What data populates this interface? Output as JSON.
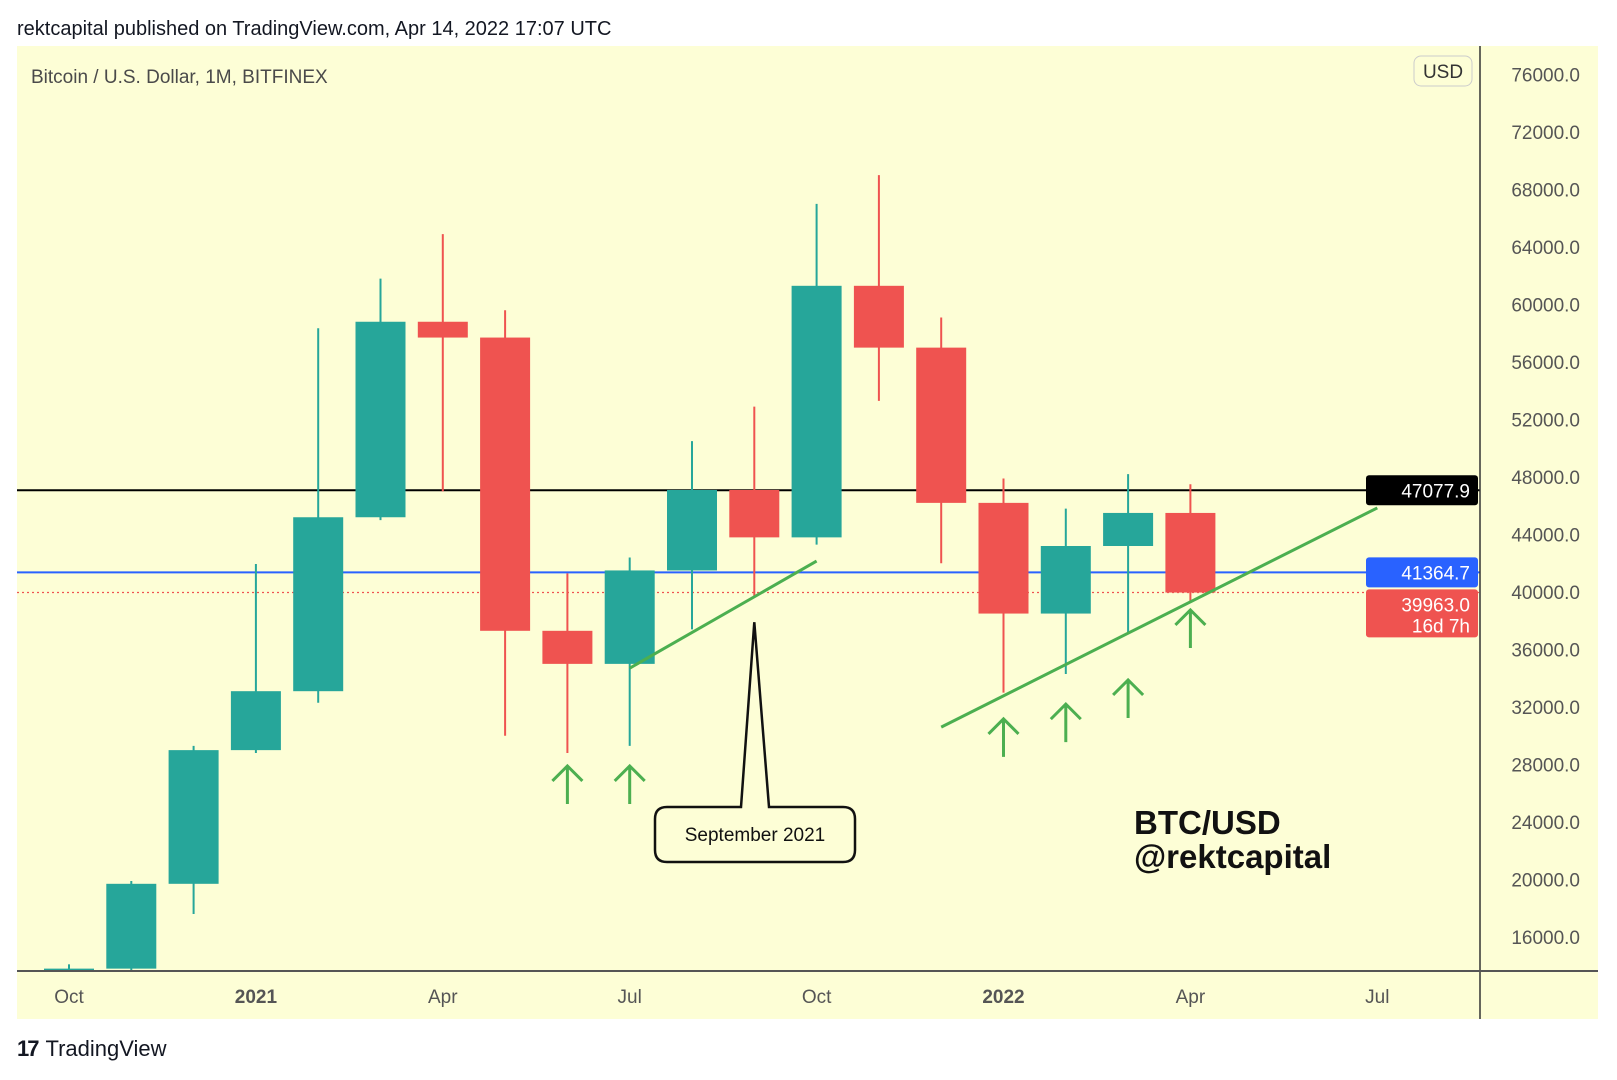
{
  "header": {
    "text": "rektcapital published on TradingView.com, Apr 14, 2022 17:07 UTC"
  },
  "footer": {
    "logo_mark": "17",
    "brand": "TradingView"
  },
  "colors": {
    "background": "#fdfed6",
    "up": "#26a69a",
    "down": "#ef5350",
    "trendline": "#4caf50",
    "blue_line": "#2962ff",
    "black_line": "#000000"
  },
  "chart_data": {
    "type": "candlestick",
    "title": "Bitcoin / U.S. Dollar, 1M, BITFINEX",
    "currency_button": "USD",
    "watermark": [
      "BTC/USD",
      "@rektcapital"
    ],
    "ylim": [
      13000,
      78000
    ],
    "y_ticks": [
      "76000.0",
      "72000.0",
      "68000.0",
      "64000.0",
      "60000.0",
      "56000.0",
      "52000.0",
      "48000.0",
      "44000.0",
      "40000.0",
      "36000.0",
      "32000.0",
      "28000.0",
      "24000.0",
      "20000.0",
      "16000.0"
    ],
    "x_ticks": [
      {
        "label": "Oct",
        "month": "2020-10",
        "bold": false
      },
      {
        "label": "2021",
        "month": "2021-01",
        "bold": true
      },
      {
        "label": "Apr",
        "month": "2021-04",
        "bold": false
      },
      {
        "label": "Jul",
        "month": "2021-07",
        "bold": false
      },
      {
        "label": "Oct",
        "month": "2021-10",
        "bold": false
      },
      {
        "label": "2022",
        "month": "2022-01",
        "bold": true
      },
      {
        "label": "Apr",
        "month": "2022-04",
        "bold": false
      },
      {
        "label": "Jul",
        "month": "2022-07",
        "bold": false
      }
    ],
    "candles": [
      {
        "month": "2020-10",
        "o": 10780,
        "h": 14100,
        "l": 10550,
        "c": 13800
      },
      {
        "month": "2020-11",
        "o": 13800,
        "h": 19900,
        "l": 13200,
        "c": 19700
      },
      {
        "month": "2020-12",
        "o": 19700,
        "h": 29300,
        "l": 17600,
        "c": 29000
      },
      {
        "month": "2021-01",
        "o": 29000,
        "h": 41950,
        "l": 28800,
        "c": 33100
      },
      {
        "month": "2021-02",
        "o": 33100,
        "h": 58350,
        "l": 32300,
        "c": 45200
      },
      {
        "month": "2021-03",
        "o": 45200,
        "h": 61800,
        "l": 45000,
        "c": 58800
      },
      {
        "month": "2021-04",
        "o": 58800,
        "h": 64900,
        "l": 47000,
        "c": 57700
      },
      {
        "month": "2021-05",
        "o": 57700,
        "h": 59600,
        "l": 30000,
        "c": 37300
      },
      {
        "month": "2021-06",
        "o": 37300,
        "h": 41300,
        "l": 28800,
        "c": 35000
      },
      {
        "month": "2021-07",
        "o": 35000,
        "h": 42400,
        "l": 29300,
        "c": 41500
      },
      {
        "month": "2021-08",
        "o": 41500,
        "h": 50500,
        "l": 37400,
        "c": 47100
      },
      {
        "month": "2021-09",
        "o": 47100,
        "h": 52900,
        "l": 39600,
        "c": 43800
      },
      {
        "month": "2021-10",
        "o": 43800,
        "h": 67000,
        "l": 43300,
        "c": 61300
      },
      {
        "month": "2021-11",
        "o": 61300,
        "h": 69000,
        "l": 53300,
        "c": 57000
      },
      {
        "month": "2021-12",
        "o": 57000,
        "h": 59100,
        "l": 42000,
        "c": 46200
      },
      {
        "month": "2022-01",
        "o": 46200,
        "h": 47900,
        "l": 33000,
        "c": 38500
      },
      {
        "month": "2022-02",
        "o": 38500,
        "h": 45800,
        "l": 34300,
        "c": 43200
      },
      {
        "month": "2022-03",
        "o": 43200,
        "h": 48200,
        "l": 37200,
        "c": 45500
      },
      {
        "month": "2022-04",
        "o": 45500,
        "h": 47500,
        "l": 39300,
        "c": 39963
      }
    ],
    "horizontal_lines": [
      {
        "price": 47077.9,
        "label": "47077.9",
        "color": "#000000",
        "style": "solid"
      },
      {
        "price": 41364.7,
        "label": "41364.7",
        "color": "#2962ff",
        "style": "solid"
      },
      {
        "price": 39963.0,
        "label": "39963.0",
        "sublabel": "16d 7h",
        "color": "#ef5350",
        "style": "dotted"
      }
    ],
    "trendlines": [
      {
        "from": {
          "month": "2021-07",
          "price": 34700
        },
        "to": {
          "month": "2021-10",
          "price": 42150
        }
      },
      {
        "from": {
          "month": "2021-12",
          "price": 30600
        },
        "to": {
          "month": "2022-07",
          "price": 45850
        }
      }
    ],
    "up_arrows": [
      {
        "month": "2021-06",
        "price": 27900
      },
      {
        "month": "2021-07",
        "price": 27900
      },
      {
        "month": "2022-01",
        "price": 31170
      },
      {
        "month": "2022-02",
        "price": 32200
      },
      {
        "month": "2022-03",
        "price": 33880
      },
      {
        "month": "2022-04",
        "price": 38750
      }
    ],
    "callout": {
      "text": "September 2021",
      "month": "2021-09",
      "price": 37900
    }
  }
}
